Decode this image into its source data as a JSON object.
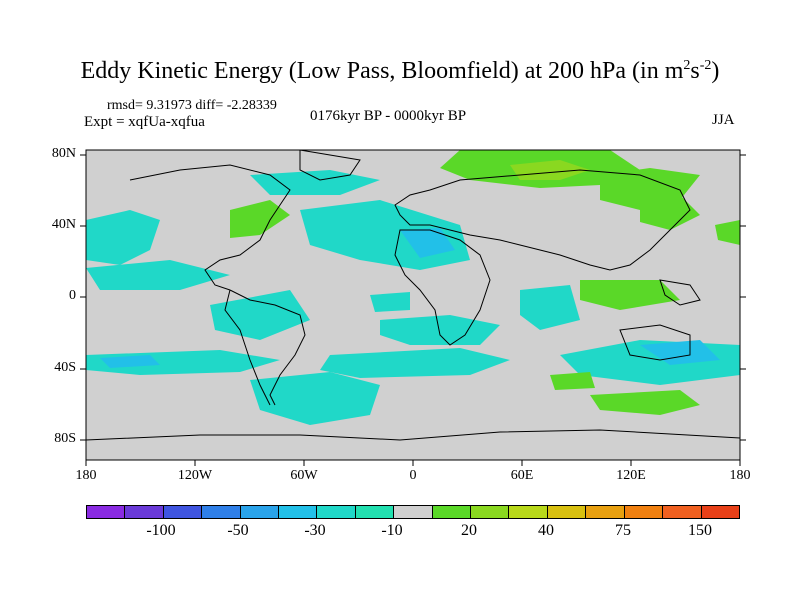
{
  "title_main": "Eddy Kinetic Energy (Low Pass, Bloomfield) at 200 hPa (in m",
  "title_sup1": "2",
  "title_mid": "s",
  "title_sup2": "-2",
  "title_end": ")",
  "stats_text": "rmsd= 9.31973 diff= -2.28339",
  "expt_text": "Expt = xqfUa-xqfua",
  "period_text": "0176kyr BP - 0000kyr BP",
  "season_text": "JJA",
  "lat_labels": [
    "80N",
    "40N",
    "0",
    "40S",
    "80S"
  ],
  "lon_labels": [
    "180",
    "120W",
    "60W",
    "0",
    "60E",
    "120E",
    "180"
  ],
  "colorbar": {
    "colors": [
      "#8a2be2",
      "#6a3ad8",
      "#3f55e0",
      "#2f7fe8",
      "#2aa3ea",
      "#22c0e8",
      "#20d8c8",
      "#22e0b0",
      "#d0d0d0",
      "#5ad828",
      "#8ad820",
      "#b8d81a",
      "#d8c010",
      "#e8a010",
      "#f08010",
      "#f06020",
      "#e84018"
    ],
    "labels": [
      "-100",
      "-50",
      "-30",
      "-10",
      "20",
      "40",
      "75",
      "150"
    ]
  },
  "map_colors": {
    "land_background": "#d0d0d0",
    "positive": "#5ad828",
    "negative_weak": "#20d8c8",
    "negative_mid": "#22c0e8"
  }
}
